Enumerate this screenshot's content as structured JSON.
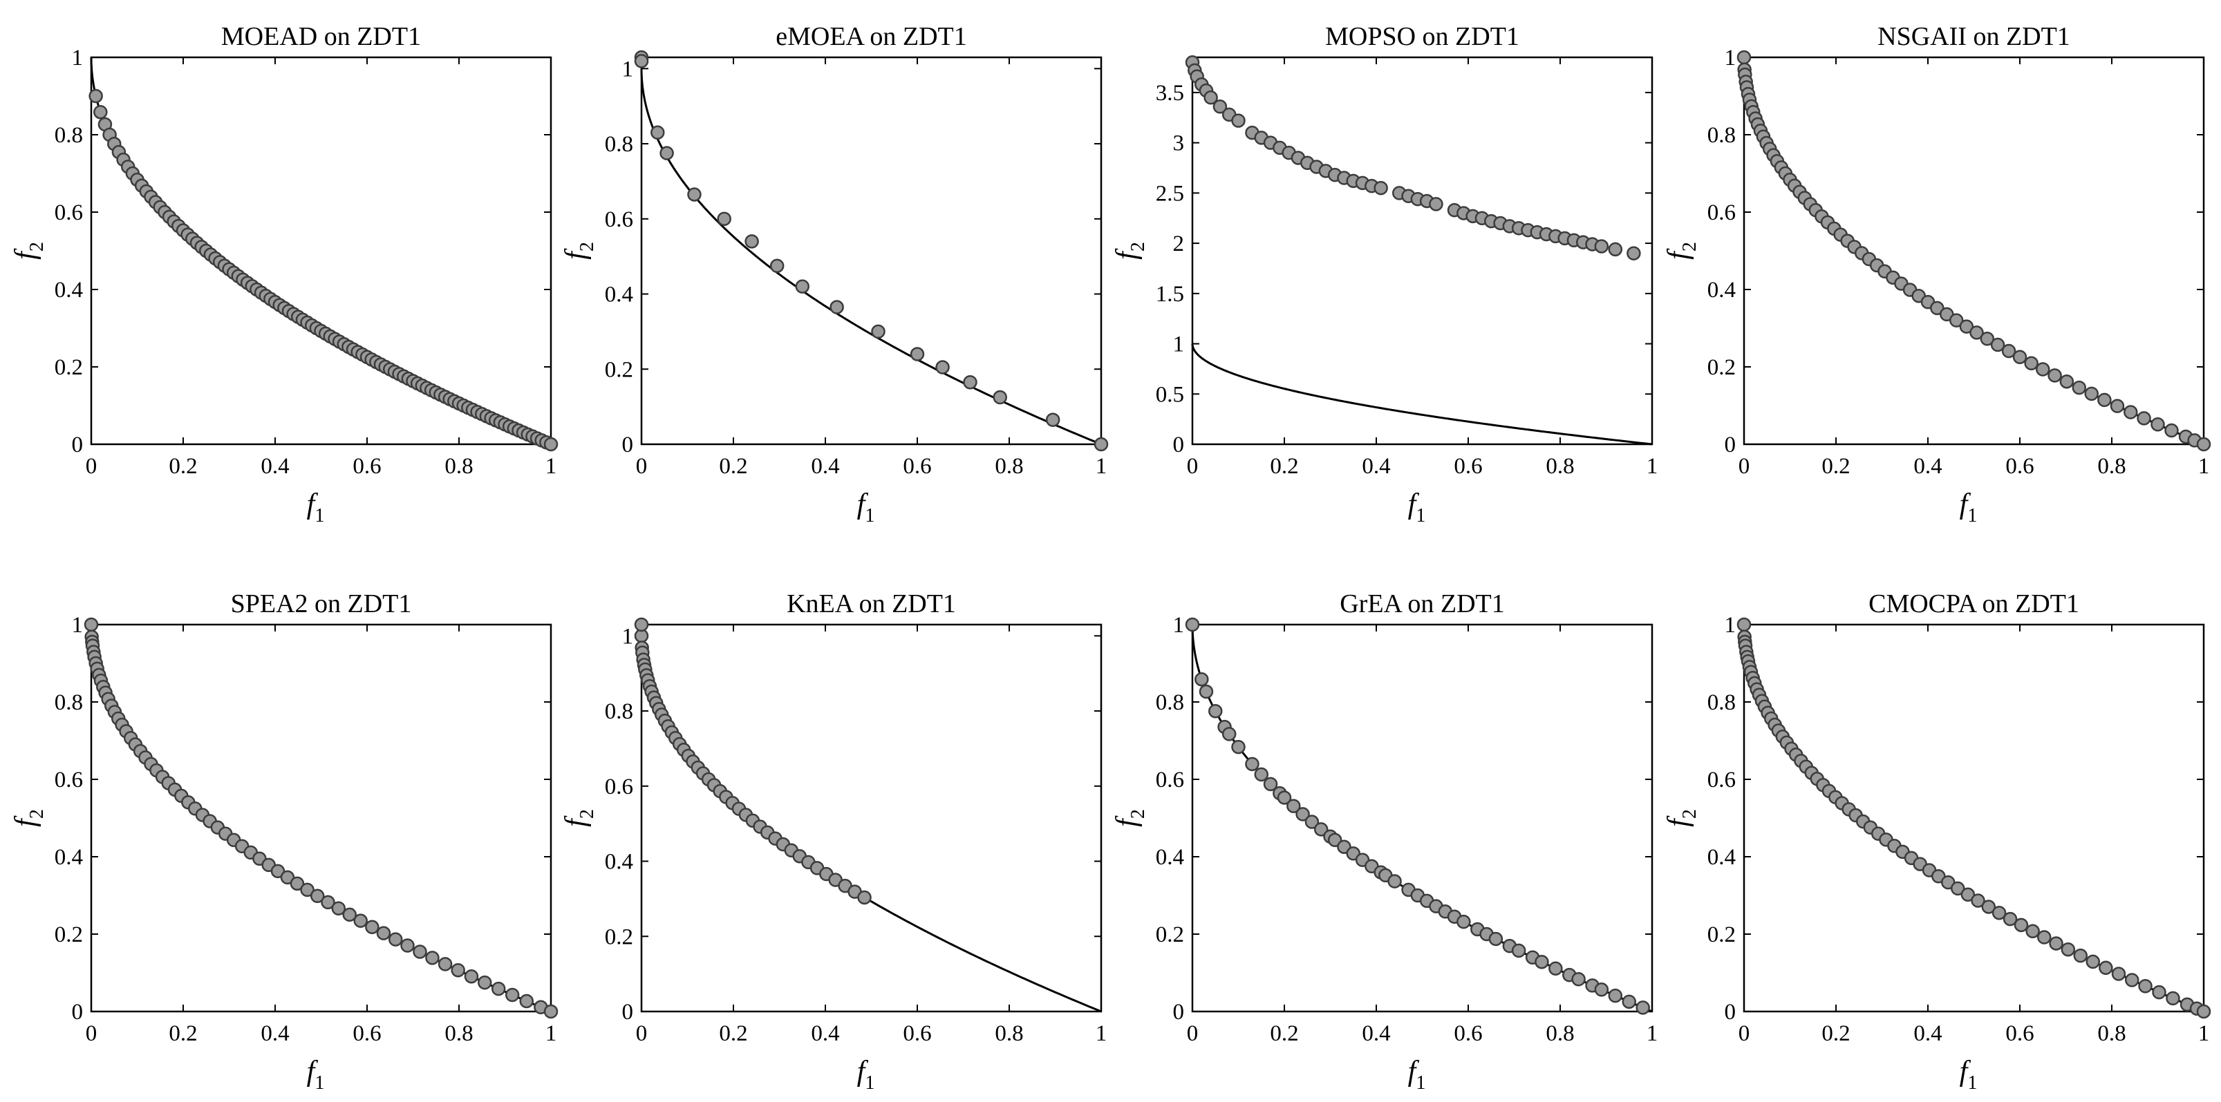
{
  "figure": {
    "rows": 2,
    "cols": 4,
    "front_label": "ZDT1 Pareto front f2 = 1 - sqrt(f1)"
  },
  "colors": {
    "point_fill": "#9a9a9a",
    "point_stroke": "#3c3c3c",
    "front_line": "#000000",
    "axis": "#000000"
  },
  "chart_data": [
    {
      "type": "scatter",
      "title": "MOEAD on ZDT1",
      "xlabel": "f",
      "xlabel_sub": "1",
      "ylabel": "f",
      "ylabel_sub": "2",
      "xlim": [
        0,
        1
      ],
      "ylim": [
        0,
        1
      ],
      "xticks": [
        0,
        0.2,
        0.4,
        0.6,
        0.8,
        1
      ],
      "xtick_labels": [
        "0",
        "0.2",
        "0.4",
        "0.6",
        "0.8",
        "1"
      ],
      "yticks": [
        0,
        0.2,
        0.4,
        0.6,
        0.8,
        1
      ],
      "ytick_labels": [
        "0",
        "0.2",
        "0.4",
        "0.6",
        "0.8",
        "1"
      ],
      "front": "1-sqrt",
      "points": {
        "mode": "front",
        "f1": [
          0.01,
          0.02,
          0.03,
          0.04,
          0.05,
          0.06,
          0.07,
          0.08,
          0.09,
          0.1,
          0.11,
          0.12,
          0.13,
          0.14,
          0.15,
          0.16,
          0.17,
          0.18,
          0.19,
          0.2,
          0.21,
          0.22,
          0.23,
          0.24,
          0.25,
          0.26,
          0.27,
          0.28,
          0.29,
          0.3,
          0.31,
          0.32,
          0.33,
          0.34,
          0.35,
          0.36,
          0.37,
          0.38,
          0.39,
          0.4,
          0.41,
          0.42,
          0.43,
          0.44,
          0.45,
          0.46,
          0.47,
          0.48,
          0.49,
          0.5,
          0.51,
          0.52,
          0.53,
          0.54,
          0.55,
          0.56,
          0.57,
          0.58,
          0.59,
          0.6,
          0.61,
          0.62,
          0.63,
          0.64,
          0.65,
          0.66,
          0.67,
          0.68,
          0.69,
          0.7,
          0.71,
          0.72,
          0.73,
          0.74,
          0.75,
          0.76,
          0.77,
          0.78,
          0.79,
          0.8,
          0.81,
          0.82,
          0.83,
          0.84,
          0.85,
          0.86,
          0.87,
          0.88,
          0.89,
          0.9,
          0.91,
          0.92,
          0.93,
          0.94,
          0.95,
          0.96,
          0.97,
          0.98,
          0.99,
          1.0
        ]
      }
    },
    {
      "type": "scatter",
      "title": "eMOEA on ZDT1",
      "xlabel": "f",
      "xlabel_sub": "1",
      "ylabel": "f",
      "ylabel_sub": "2",
      "xlim": [
        0,
        1
      ],
      "ylim": [
        0,
        1.03
      ],
      "xticks": [
        0,
        0.2,
        0.4,
        0.6,
        0.8,
        1
      ],
      "xtick_labels": [
        "0",
        "0.2",
        "0.4",
        "0.6",
        "0.8",
        "1"
      ],
      "yticks": [
        0,
        0.2,
        0.4,
        0.6,
        0.8,
        1
      ],
      "ytick_labels": [
        "0",
        "0.2",
        "0.4",
        "0.6",
        "0.8",
        "1"
      ],
      "front": "1-sqrt",
      "points": {
        "mode": "xy",
        "x": [
          0.0,
          0.0,
          0.035,
          0.055,
          0.115,
          0.18,
          0.24,
          0.295,
          0.35,
          0.425,
          0.515,
          0.6,
          0.655,
          0.715,
          0.78,
          0.895,
          1.0
        ],
        "y": [
          1.03,
          1.02,
          0.83,
          0.775,
          0.665,
          0.6,
          0.54,
          0.475,
          0.42,
          0.365,
          0.3,
          0.24,
          0.205,
          0.165,
          0.125,
          0.065,
          0.0
        ]
      }
    },
    {
      "type": "scatter",
      "title": "MOPSO on ZDT1",
      "xlabel": "f",
      "xlabel_sub": "1",
      "ylabel": "f",
      "ylabel_sub": "2",
      "xlim": [
        0,
        1
      ],
      "ylim": [
        0,
        3.85
      ],
      "xticks": [
        0,
        0.2,
        0.4,
        0.6,
        0.8,
        1
      ],
      "xtick_labels": [
        "0",
        "0.2",
        "0.4",
        "0.6",
        "0.8",
        "1"
      ],
      "yticks": [
        0,
        0.5,
        1,
        1.5,
        2,
        2.5,
        3,
        3.5
      ],
      "ytick_labels": [
        "0",
        "0.5",
        "1",
        "1.5",
        "2",
        "2.5",
        "3",
        "3.5"
      ],
      "front": "1-sqrt",
      "points": {
        "mode": "xy",
        "x": [
          0.0,
          0.005,
          0.01,
          0.02,
          0.03,
          0.04,
          0.06,
          0.08,
          0.1,
          0.13,
          0.15,
          0.17,
          0.19,
          0.21,
          0.23,
          0.25,
          0.27,
          0.29,
          0.31,
          0.33,
          0.35,
          0.37,
          0.39,
          0.41,
          0.45,
          0.47,
          0.49,
          0.51,
          0.53,
          0.57,
          0.59,
          0.61,
          0.63,
          0.65,
          0.67,
          0.69,
          0.71,
          0.73,
          0.75,
          0.77,
          0.79,
          0.81,
          0.83,
          0.85,
          0.87,
          0.89,
          0.92,
          0.96
        ],
        "y": [
          3.8,
          3.72,
          3.66,
          3.58,
          3.52,
          3.45,
          3.36,
          3.28,
          3.22,
          3.1,
          3.05,
          3.0,
          2.95,
          2.9,
          2.85,
          2.8,
          2.76,
          2.72,
          2.68,
          2.65,
          2.62,
          2.6,
          2.57,
          2.55,
          2.5,
          2.47,
          2.44,
          2.42,
          2.39,
          2.33,
          2.3,
          2.27,
          2.25,
          2.22,
          2.2,
          2.17,
          2.15,
          2.13,
          2.11,
          2.09,
          2.07,
          2.05,
          2.03,
          2.01,
          1.99,
          1.97,
          1.94,
          1.9
        ]
      }
    },
    {
      "type": "scatter",
      "title": "NSGAII on ZDT1",
      "xlabel": "f",
      "xlabel_sub": "1",
      "ylabel": "f",
      "ylabel_sub": "2",
      "xlim": [
        0,
        1
      ],
      "ylim": [
        0,
        1
      ],
      "xticks": [
        0,
        0.2,
        0.4,
        0.6,
        0.8,
        1
      ],
      "xtick_labels": [
        "0",
        "0.2",
        "0.4",
        "0.6",
        "0.8",
        "1"
      ],
      "yticks": [
        0,
        0.2,
        0.4,
        0.6,
        0.8,
        1
      ],
      "ytick_labels": [
        "0",
        "0.2",
        "0.4",
        "0.6",
        "0.8",
        "1"
      ],
      "front": "1-sqrt",
      "points": {
        "mode": "front",
        "f1": [
          0.0,
          0.001,
          0.002,
          0.004,
          0.006,
          0.009,
          0.012,
          0.016,
          0.02,
          0.025,
          0.03,
          0.036,
          0.042,
          0.049,
          0.056,
          0.064,
          0.072,
          0.081,
          0.09,
          0.1,
          0.11,
          0.121,
          0.132,
          0.144,
          0.156,
          0.169,
          0.182,
          0.196,
          0.21,
          0.225,
          0.24,
          0.256,
          0.272,
          0.289,
          0.306,
          0.324,
          0.342,
          0.361,
          0.38,
          0.4,
          0.42,
          0.441,
          0.462,
          0.484,
          0.506,
          0.529,
          0.552,
          0.576,
          0.6,
          0.625,
          0.65,
          0.676,
          0.702,
          0.729,
          0.756,
          0.784,
          0.812,
          0.841,
          0.87,
          0.9,
          0.93,
          0.961,
          0.98,
          1.0
        ]
      }
    },
    {
      "type": "scatter",
      "title": "SPEA2 on ZDT1",
      "xlabel": "f",
      "xlabel_sub": "1",
      "ylabel": "f",
      "ylabel_sub": "2",
      "xlim": [
        0,
        1
      ],
      "ylim": [
        0,
        1
      ],
      "xticks": [
        0,
        0.2,
        0.4,
        0.6,
        0.8,
        1
      ],
      "xtick_labels": [
        "0",
        "0.2",
        "0.4",
        "0.6",
        "0.8",
        "1"
      ],
      "yticks": [
        0,
        0.2,
        0.4,
        0.6,
        0.8,
        1
      ],
      "ytick_labels": [
        "0",
        "0.2",
        "0.4",
        "0.6",
        "0.8",
        "1"
      ],
      "front": "1-sqrt",
      "points": {
        "mode": "front",
        "f1": [
          0.0,
          0.001,
          0.002,
          0.003,
          0.005,
          0.007,
          0.01,
          0.013,
          0.017,
          0.021,
          0.026,
          0.031,
          0.037,
          0.044,
          0.051,
          0.059,
          0.067,
          0.076,
          0.086,
          0.096,
          0.107,
          0.118,
          0.13,
          0.142,
          0.155,
          0.168,
          0.182,
          0.196,
          0.211,
          0.226,
          0.242,
          0.258,
          0.275,
          0.292,
          0.31,
          0.328,
          0.347,
          0.366,
          0.386,
          0.406,
          0.427,
          0.448,
          0.47,
          0.492,
          0.515,
          0.538,
          0.562,
          0.586,
          0.611,
          0.636,
          0.662,
          0.688,
          0.715,
          0.742,
          0.77,
          0.798,
          0.827,
          0.856,
          0.886,
          0.916,
          0.947,
          0.978,
          1.0
        ]
      }
    },
    {
      "type": "scatter",
      "title": "KnEA on ZDT1",
      "xlabel": "f",
      "xlabel_sub": "1",
      "ylabel": "f",
      "ylabel_sub": "2",
      "xlim": [
        0,
        1
      ],
      "ylim": [
        0,
        1.03
      ],
      "xticks": [
        0,
        0.2,
        0.4,
        0.6,
        0.8,
        1
      ],
      "xtick_labels": [
        "0",
        "0.2",
        "0.4",
        "0.6",
        "0.8",
        "1"
      ],
      "yticks": [
        0,
        0.2,
        0.4,
        0.6,
        0.8,
        1
      ],
      "ytick_labels": [
        "0",
        "0.2",
        "0.4",
        "0.6",
        "0.8",
        "1"
      ],
      "front": "1-sqrt",
      "extra_points": [
        {
          "x": 0.0,
          "y": 1.03
        }
      ],
      "points": {
        "mode": "front",
        "f1": [
          0.0,
          0.001,
          0.002,
          0.004,
          0.006,
          0.008,
          0.011,
          0.014,
          0.018,
          0.022,
          0.027,
          0.032,
          0.038,
          0.044,
          0.051,
          0.058,
          0.066,
          0.074,
          0.083,
          0.092,
          0.102,
          0.112,
          0.123,
          0.134,
          0.146,
          0.158,
          0.171,
          0.184,
          0.198,
          0.212,
          0.227,
          0.242,
          0.258,
          0.274,
          0.291,
          0.308,
          0.326,
          0.344,
          0.363,
          0.382,
          0.402,
          0.422,
          0.443,
          0.464,
          0.485
        ]
      }
    },
    {
      "type": "scatter",
      "title": "GrEA on ZDT1",
      "xlabel": "f",
      "xlabel_sub": "1",
      "ylabel": "f",
      "ylabel_sub": "2",
      "xlim": [
        0,
        1
      ],
      "ylim": [
        0,
        1
      ],
      "xticks": [
        0,
        0.2,
        0.4,
        0.6,
        0.8,
        1
      ],
      "xtick_labels": [
        "0",
        "0.2",
        "0.4",
        "0.6",
        "0.8",
        "1"
      ],
      "yticks": [
        0,
        0.2,
        0.4,
        0.6,
        0.8,
        1
      ],
      "ytick_labels": [
        "0",
        "0.2",
        "0.4",
        "0.6",
        "0.8",
        "1"
      ],
      "front": "1-sqrt",
      "points": {
        "mode": "front",
        "f1": [
          0.0,
          0.02,
          0.03,
          0.05,
          0.07,
          0.08,
          0.1,
          0.13,
          0.15,
          0.17,
          0.19,
          0.2,
          0.22,
          0.24,
          0.26,
          0.28,
          0.3,
          0.31,
          0.33,
          0.35,
          0.37,
          0.39,
          0.41,
          0.42,
          0.44,
          0.47,
          0.49,
          0.51,
          0.53,
          0.55,
          0.57,
          0.59,
          0.62,
          0.64,
          0.66,
          0.69,
          0.71,
          0.74,
          0.76,
          0.79,
          0.82,
          0.84,
          0.87,
          0.89,
          0.92,
          0.95,
          0.98
        ]
      }
    },
    {
      "type": "scatter",
      "title": "CMOCPA on ZDT1",
      "xlabel": "f",
      "xlabel_sub": "1",
      "ylabel": "f",
      "ylabel_sub": "2",
      "xlim": [
        0,
        1
      ],
      "ylim": [
        0,
        1
      ],
      "xticks": [
        0,
        0.2,
        0.4,
        0.6,
        0.8,
        1
      ],
      "xtick_labels": [
        "0",
        "0.2",
        "0.4",
        "0.6",
        "0.8",
        "1"
      ],
      "yticks": [
        0,
        0.2,
        0.4,
        0.6,
        0.8,
        1
      ],
      "ytick_labels": [
        "0",
        "0.2",
        "0.4",
        "0.6",
        "0.8",
        "1"
      ],
      "front": "1-sqrt",
      "points": {
        "mode": "front",
        "f1": [
          0.0,
          0.001,
          0.002,
          0.003,
          0.005,
          0.007,
          0.009,
          0.012,
          0.015,
          0.019,
          0.023,
          0.028,
          0.033,
          0.039,
          0.045,
          0.052,
          0.059,
          0.067,
          0.075,
          0.084,
          0.093,
          0.103,
          0.113,
          0.124,
          0.135,
          0.147,
          0.159,
          0.172,
          0.185,
          0.199,
          0.213,
          0.228,
          0.243,
          0.259,
          0.275,
          0.292,
          0.309,
          0.327,
          0.345,
          0.364,
          0.383,
          0.403,
          0.423,
          0.444,
          0.465,
          0.487,
          0.509,
          0.532,
          0.555,
          0.579,
          0.603,
          0.628,
          0.653,
          0.679,
          0.705,
          0.732,
          0.759,
          0.787,
          0.815,
          0.844,
          0.873,
          0.903,
          0.933,
          0.964,
          0.985,
          1.0
        ]
      }
    }
  ]
}
